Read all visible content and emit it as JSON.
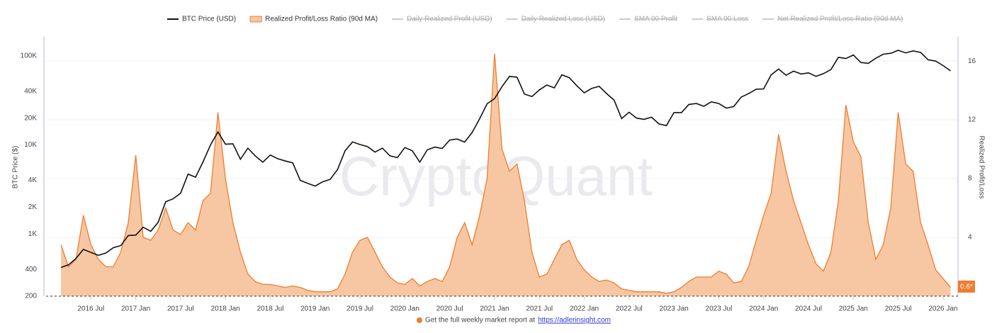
{
  "chart_data": {
    "type": "line",
    "title_watermark": "CryptoQuant",
    "y_label": "BTC Price ($)",
    "y2_label": "Realized Profit/Loss",
    "footer_text": "Get the full weekly market report at",
    "footer_link": "https://adlerinsight.com",
    "last_value_badge": "0.6*",
    "log_y": true,
    "grid": true,
    "legend_position": "top",
    "legend_hidden": [
      "Daily Realized Profit (USD)",
      "Daily Realized Loss (USD)",
      "SMA 90 Profit",
      "SMA 90 Loss",
      "Net Realized Profit/Loss Ratio (90d MA)"
    ],
    "xlim": [
      "2016-01",
      "2026-03"
    ],
    "xticks": [
      {
        "value": "2016-07",
        "label": "2016 Jul"
      },
      {
        "value": "2017-01",
        "label": "2017 Jan"
      },
      {
        "value": "2017-07",
        "label": "2017 Jul"
      },
      {
        "value": "2018-01",
        "label": "2018 Jan"
      },
      {
        "value": "2018-07",
        "label": "2018 Jul"
      },
      {
        "value": "2019-01",
        "label": "2019 Jan"
      },
      {
        "value": "2019-07",
        "label": "2019 Jul"
      },
      {
        "value": "2020-01",
        "label": "2020 Jan"
      },
      {
        "value": "2020-07",
        "label": "2020 Jul"
      },
      {
        "value": "2021-01",
        "label": "2021 Jan"
      },
      {
        "value": "2021-07",
        "label": "2021 Jul"
      },
      {
        "value": "2022-01",
        "label": "2022 Jan"
      },
      {
        "value": "2022-07",
        "label": "2022 Jul"
      },
      {
        "value": "2023-01",
        "label": "2023 Jan"
      },
      {
        "value": "2023-07",
        "label": "2023 Jul"
      },
      {
        "value": "2024-01",
        "label": "2024 Jan"
      },
      {
        "value": "2024-07",
        "label": "2024 Jul"
      },
      {
        "value": "2025-01",
        "label": "2025 Jan"
      },
      {
        "value": "2025-07",
        "label": "2025 Jul"
      },
      {
        "value": "2026-01",
        "label": "2026 Jan"
      }
    ],
    "ylim": [
      200,
      155000
    ],
    "yticks": [
      200,
      400,
      {
        "value": 1000,
        "label": "1K"
      },
      {
        "value": 2000,
        "label": "2K"
      },
      {
        "value": 4000,
        "label": "4K"
      },
      {
        "value": 10000,
        "label": "10K"
      },
      {
        "value": 20000,
        "label": "20K"
      },
      {
        "value": 40000,
        "label": "40K"
      },
      {
        "value": 100000,
        "label": "100K"
      }
    ],
    "y2lim": [
      0,
      17.5
    ],
    "y2ticks": [
      4,
      8,
      12,
      16
    ],
    "x": [
      "2016-03",
      "2016-04",
      "2016-05",
      "2016-06",
      "2016-07",
      "2016-08",
      "2016-09",
      "2016-10",
      "2016-11",
      "2016-12",
      "2017-01",
      "2017-02",
      "2017-03",
      "2017-04",
      "2017-05",
      "2017-06",
      "2017-07",
      "2017-08",
      "2017-09",
      "2017-10",
      "2017-11",
      "2017-12",
      "2018-01",
      "2018-02",
      "2018-03",
      "2018-04",
      "2018-05",
      "2018-06",
      "2018-07",
      "2018-08",
      "2018-09",
      "2018-10",
      "2018-11",
      "2018-12",
      "2019-01",
      "2019-02",
      "2019-03",
      "2019-04",
      "2019-05",
      "2019-06",
      "2019-07",
      "2019-08",
      "2019-09",
      "2019-10",
      "2019-11",
      "2019-12",
      "2020-01",
      "2020-02",
      "2020-03",
      "2020-04",
      "2020-05",
      "2020-06",
      "2020-07",
      "2020-08",
      "2020-09",
      "2020-10",
      "2020-11",
      "2020-12",
      "2021-01",
      "2021-02",
      "2021-03",
      "2021-04",
      "2021-05",
      "2021-06",
      "2021-07",
      "2021-08",
      "2021-09",
      "2021-10",
      "2021-11",
      "2021-12",
      "2022-01",
      "2022-02",
      "2022-03",
      "2022-04",
      "2022-05",
      "2022-06",
      "2022-07",
      "2022-08",
      "2022-09",
      "2022-10",
      "2022-11",
      "2022-12",
      "2023-01",
      "2023-02",
      "2023-03",
      "2023-04",
      "2023-05",
      "2023-06",
      "2023-07",
      "2023-08",
      "2023-09",
      "2023-10",
      "2023-11",
      "2023-12",
      "2024-01",
      "2024-02",
      "2024-03",
      "2024-04",
      "2024-05",
      "2024-06",
      "2024-07",
      "2024-08",
      "2024-09",
      "2024-10",
      "2024-11",
      "2024-12",
      "2025-01",
      "2025-02",
      "2025-03",
      "2025-04",
      "2025-05",
      "2025-06",
      "2025-07",
      "2025-08",
      "2025-09",
      "2025-10",
      "2025-11",
      "2025-12",
      "2026-01",
      "2026-02"
    ],
    "series": [
      {
        "name": "BTC Price (USD)",
        "type": "line",
        "color": "#111111",
        "axis": "y",
        "values": [
          420,
          450,
          530,
          670,
          620,
          575,
          610,
          700,
          740,
          960,
          970,
          1190,
          1070,
          1350,
          2300,
          2480,
          2870,
          4700,
          4340,
          6450,
          10000,
          14000,
          10200,
          10300,
          6900,
          9200,
          7500,
          6400,
          7700,
          7000,
          6600,
          6300,
          4000,
          3700,
          3450,
          3850,
          4100,
          5300,
          8600,
          10800,
          10100,
          9600,
          8300,
          9200,
          7550,
          7200,
          9350,
          8600,
          6400,
          8800,
          9450,
          9140,
          11350,
          11650,
          10780,
          13800,
          19700,
          29000,
          33100,
          45200,
          58800,
          57700,
          37300,
          35000,
          41500,
          47100,
          43800,
          61300,
          57000,
          46300,
          38500,
          43200,
          45500,
          37700,
          31800,
          19800,
          23300,
          20000,
          19400,
          20500,
          17200,
          16500,
          23100,
          23100,
          28500,
          29200,
          27200,
          30500,
          29200,
          25900,
          27000,
          34500,
          37700,
          42300,
          42600,
          61200,
          71300,
          60600,
          67500,
          62700,
          64600,
          59000,
          63300,
          70200,
          96400,
          93400,
          102400,
          84400,
          82500,
          94200,
          104600,
          107100,
          115700,
          108200,
          114000,
          109500,
          90400,
          87500,
          78000,
          68000
        ]
      },
      {
        "name": "Realized Profit/Loss Ratio (90d MA)",
        "type": "area",
        "color": "#f07c2e",
        "fill": "#f7c7a3",
        "axis": "y2",
        "values": [
          3.5,
          2.0,
          2.5,
          5.5,
          3.5,
          2.5,
          2.0,
          2.0,
          3.0,
          5.0,
          9.6,
          4.0,
          3.8,
          4.5,
          6.0,
          4.5,
          4.2,
          5.0,
          4.5,
          6.5,
          7.0,
          12.5,
          8.0,
          5.0,
          3.0,
          1.5,
          1.0,
          0.8,
          0.8,
          0.7,
          0.6,
          0.7,
          0.6,
          0.4,
          0.3,
          0.3,
          0.3,
          0.5,
          1.5,
          3.0,
          3.8,
          4.0,
          3.0,
          2.0,
          1.3,
          0.9,
          0.8,
          1.2,
          0.7,
          1.0,
          1.2,
          1.0,
          2.0,
          4.0,
          5.0,
          3.5,
          5.5,
          8.0,
          16.5,
          10.0,
          8.5,
          9.0,
          6.5,
          3.0,
          1.3,
          1.5,
          2.5,
          3.5,
          3.8,
          2.5,
          1.8,
          1.3,
          1.0,
          1.1,
          0.9,
          0.5,
          0.4,
          0.3,
          0.3,
          0.3,
          0.3,
          0.2,
          0.3,
          0.6,
          1.0,
          1.3,
          1.3,
          1.3,
          1.7,
          1.5,
          0.9,
          1.0,
          2.0,
          3.8,
          5.5,
          7.0,
          11.0,
          8.5,
          6.5,
          5.0,
          3.5,
          2.2,
          1.7,
          3.0,
          6.5,
          13.0,
          10.5,
          9.5,
          5.0,
          2.5,
          3.5,
          6.0,
          12.5,
          9.0,
          8.5,
          5.0,
          3.5,
          1.8,
          1.2,
          0.6
        ]
      }
    ]
  }
}
